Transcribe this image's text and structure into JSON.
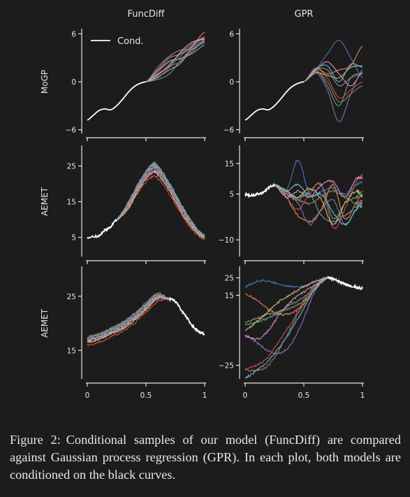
{
  "figure": {
    "columns": [
      "FuncDiff",
      "GPR"
    ],
    "rows": [
      "MoGP",
      "AEMET",
      "AEMET"
    ],
    "legend": "Cond."
  },
  "colors": {
    "background": "#1c1c1c",
    "axis": "#e6e6e6",
    "conditioning": "#ffffff",
    "palette": [
      "#4c72b0",
      "#dd8452",
      "#55a868",
      "#c44e52",
      "#8172b3",
      "#937860",
      "#da8bc3",
      "#8c8c8c",
      "#ccb974",
      "#64b5cd"
    ]
  },
  "chart_data": [
    {
      "type": "line",
      "panel": "MoGP-FuncDiff",
      "x_ticks": [
        0,
        0.5,
        1
      ],
      "x_tick_labels": [],
      "xlim": [
        0,
        1
      ],
      "y_ticks": [
        6,
        0,
        -6
      ],
      "y_tick_labels": [
        "6",
        "0",
        "−6"
      ],
      "ylim": [
        -6.3,
        6.3
      ],
      "ylabel": "MoGP",
      "column_title": "FuncDiff",
      "legend": "Cond.",
      "noise": false,
      "conditioning": {
        "x": [
          0,
          0.05,
          0.1,
          0.15,
          0.2,
          0.25,
          0.3,
          0.35,
          0.4,
          0.45,
          0.5
        ],
        "y": [
          -4.8,
          -4.2,
          -3.6,
          -3.4,
          -3.5,
          -3.0,
          -2.2,
          -1.3,
          -0.6,
          -0.2,
          0.0
        ]
      },
      "samples": {
        "x": [
          0.5,
          0.6,
          0.7,
          0.8,
          0.9,
          1.0
        ],
        "y": [
          [
            0,
            0.5,
            1.8,
            3.3,
            4.4,
            5.2
          ],
          [
            0,
            1.5,
            3.0,
            3.5,
            4.6,
            6.2
          ],
          [
            0,
            0.3,
            1.0,
            2.8,
            4.2,
            5.0
          ],
          [
            0,
            1.2,
            2.5,
            3.0,
            3.8,
            5.4
          ],
          [
            0,
            0.8,
            2.2,
            3.6,
            4.8,
            5.6
          ],
          [
            0,
            1.0,
            1.9,
            2.6,
            4.0,
            4.9
          ],
          [
            0,
            0.6,
            1.5,
            2.4,
            4.5,
            5.5
          ],
          [
            0,
            1.8,
            3.2,
            4.0,
            4.1,
            5.1
          ],
          [
            0,
            0.9,
            2.0,
            3.8,
            5.0,
            5.3
          ],
          [
            0,
            1.4,
            2.6,
            2.9,
            3.6,
            4.6
          ]
        ]
      }
    },
    {
      "type": "line",
      "panel": "MoGP-GPR",
      "x_ticks": [
        0,
        0.5,
        1
      ],
      "x_tick_labels": [],
      "xlim": [
        0,
        1
      ],
      "y_ticks": [
        6,
        0,
        -6
      ],
      "y_tick_labels": [
        "6",
        "0",
        "−6"
      ],
      "ylim": [
        -6.3,
        6.3
      ],
      "ylabel": "",
      "column_title": "GPR",
      "noise": false,
      "conditioning": {
        "x": [
          0,
          0.05,
          0.1,
          0.15,
          0.2,
          0.25,
          0.3,
          0.35,
          0.4,
          0.45,
          0.5
        ],
        "y": [
          -4.8,
          -4.2,
          -3.6,
          -3.4,
          -3.5,
          -3.0,
          -2.2,
          -1.3,
          -0.6,
          -0.2,
          0.0
        ]
      },
      "samples": {
        "x": [
          0.5,
          0.6,
          0.7,
          0.8,
          0.9,
          1.0
        ],
        "y": [
          [
            0,
            1.5,
            3.5,
            5.2,
            3.0,
            0.5
          ],
          [
            0,
            1.7,
            1.0,
            1.5,
            2.0,
            4.5
          ],
          [
            0,
            1.5,
            -0.5,
            -3.0,
            0.5,
            1.0
          ],
          [
            0,
            1.6,
            0.5,
            -2.0,
            -1.0,
            0.0
          ],
          [
            0,
            1.2,
            -1.0,
            -5.0,
            -1.5,
            1.5
          ],
          [
            0,
            1.3,
            0.0,
            -2.5,
            -1.5,
            -0.5
          ],
          [
            0,
            1.4,
            2.5,
            1.0,
            -0.5,
            1.2
          ],
          [
            0,
            1.5,
            1.5,
            -0.5,
            0.5,
            1.0
          ],
          [
            0,
            1.1,
            0.8,
            0.5,
            1.8,
            2.0
          ],
          [
            0,
            1.6,
            2.0,
            0.0,
            2.2,
            1.8
          ]
        ]
      }
    },
    {
      "type": "line",
      "panel": "AEMET-FuncDiff-1",
      "x_ticks": [
        0,
        0.5,
        1
      ],
      "x_tick_labels": [],
      "xlim": [
        0,
        1
      ],
      "y_ticks": [
        25,
        15,
        5
      ],
      "y_tick_labels": [
        "25",
        "15",
        "5"
      ],
      "ylim": [
        0,
        30
      ],
      "ylabel": "AEMET",
      "noise": true,
      "conditioning": {
        "x": [
          0,
          0.1,
          0.15,
          0.2,
          0.25
        ],
        "y": [
          5,
          5.5,
          7,
          8,
          10
        ]
      },
      "samples": {
        "x": [
          0.25,
          0.35,
          0.45,
          0.55,
          0.6,
          0.7,
          0.8,
          0.9,
          1.0
        ],
        "y": [
          [
            10,
            14,
            20,
            24,
            23.5,
            19,
            13,
            8,
            5
          ],
          [
            10,
            13.5,
            19,
            23,
            22.5,
            18,
            12,
            7.5,
            4.8
          ],
          [
            10,
            14.5,
            20.5,
            25,
            24,
            19.5,
            13.5,
            8.5,
            5.2
          ],
          [
            10,
            13,
            18.5,
            22,
            21.5,
            17,
            11.5,
            7,
            4.5
          ],
          [
            10,
            14,
            19.5,
            23.5,
            23,
            18.5,
            12.5,
            8,
            5
          ],
          [
            10,
            15,
            21,
            25.5,
            25,
            20,
            14,
            9,
            5.5
          ],
          [
            10,
            13.8,
            19.8,
            24.2,
            23.8,
            19.2,
            13.2,
            8.2,
            5
          ],
          [
            10,
            14.2,
            20.2,
            24.8,
            24.2,
            19.8,
            13.8,
            8.6,
            5.3
          ],
          [
            10,
            13.2,
            19,
            23.2,
            22.8,
            18.2,
            12.2,
            7.6,
            4.7
          ],
          [
            10,
            14.6,
            20.6,
            25.2,
            24.6,
            20.2,
            14.2,
            8.8,
            5.4
          ]
        ]
      }
    },
    {
      "type": "line",
      "panel": "AEMET-GPR-1",
      "x_ticks": [
        0,
        0.5,
        1
      ],
      "x_tick_labels": [],
      "xlim": [
        0,
        1
      ],
      "y_ticks": [
        15,
        5,
        -10
      ],
      "y_tick_labels": [
        "15",
        "5",
        "−10"
      ],
      "ylim": [
        -15,
        20
      ],
      "ylabel": "",
      "noise": true,
      "conditioning": {
        "x": [
          0,
          0.05,
          0.1,
          0.15,
          0.2,
          0.25
        ],
        "y": [
          5,
          4.5,
          5,
          5.5,
          7,
          8
        ]
      },
      "samples": {
        "x": [
          0.25,
          0.35,
          0.45,
          0.55,
          0.65,
          0.75,
          0.85,
          0.95,
          1.0
        ],
        "y": [
          [
            8,
            6,
            16,
            5,
            6,
            7,
            5,
            8,
            9
          ],
          [
            8,
            4,
            -2,
            -4,
            0,
            8,
            -3,
            2,
            5
          ],
          [
            8,
            6,
            4,
            6,
            8,
            -3,
            2,
            4,
            6
          ],
          [
            8,
            4,
            0,
            5,
            8,
            -6,
            0,
            9,
            11
          ],
          [
            8,
            6,
            2,
            -5,
            0,
            3,
            -5,
            0,
            2
          ],
          [
            8,
            5,
            3,
            2,
            4,
            6,
            4,
            2,
            3
          ],
          [
            8,
            4,
            6,
            4,
            8,
            9,
            4,
            10,
            10
          ],
          [
            8,
            5,
            3,
            5,
            -2,
            -4,
            -2,
            1,
            2
          ],
          [
            8,
            6,
            4,
            7,
            3,
            -5,
            2,
            6,
            4
          ],
          [
            8,
            6,
            8,
            4,
            5,
            -1,
            -5,
            0,
            1
          ]
        ]
      }
    },
    {
      "type": "line",
      "panel": "AEMET-FuncDiff-2",
      "x_ticks": [
        0,
        0.5,
        1
      ],
      "x_tick_labels": [
        "0",
        "0.5",
        "1"
      ],
      "xlim": [
        0,
        1
      ],
      "y_ticks": [
        25,
        15
      ],
      "y_tick_labels": [
        "25",
        "15"
      ],
      "ylim": [
        10,
        30
      ],
      "ylabel": "AEMET",
      "noise": true,
      "conditioning": {
        "x": [
          0.7,
          0.75,
          0.8,
          0.85,
          0.9,
          0.95,
          1.0
        ],
        "y": [
          24.5,
          24,
          22.5,
          21,
          19.5,
          18.5,
          18
        ]
      },
      "samples": {
        "x": [
          0,
          0.1,
          0.2,
          0.3,
          0.4,
          0.5,
          0.6,
          0.7
        ],
        "y": [
          [
            17,
            17.5,
            18.5,
            19.5,
            21,
            23,
            25,
            24.5
          ],
          [
            16.5,
            17,
            18,
            19,
            20.5,
            22.5,
            24.5,
            24.5
          ],
          [
            17.5,
            18,
            19,
            20,
            21.5,
            23.5,
            25,
            24.5
          ],
          [
            16,
            16.5,
            17.5,
            18.5,
            20,
            22,
            24,
            24.5
          ],
          [
            17,
            17.8,
            18.8,
            19.8,
            21.3,
            23.3,
            25.2,
            24.5
          ],
          [
            17.2,
            18,
            19,
            20.2,
            21.8,
            23.8,
            25.5,
            24.5
          ],
          [
            16.8,
            17.3,
            18.3,
            19.3,
            20.8,
            22.8,
            24.8,
            24.5
          ],
          [
            17.4,
            17.9,
            18.9,
            20,
            21.6,
            23.6,
            25.3,
            24.5
          ],
          [
            16.6,
            17.1,
            18.1,
            19.1,
            20.6,
            22.6,
            24.6,
            24.5
          ],
          [
            17,
            17.6,
            18.6,
            19.6,
            21.1,
            23.1,
            25,
            24.5
          ]
        ]
      }
    },
    {
      "type": "line",
      "panel": "AEMET-GPR-2",
      "x_ticks": [
        0,
        0.5,
        1
      ],
      "x_tick_labels": [
        "0",
        "0.5",
        "1"
      ],
      "xlim": [
        0,
        1
      ],
      "y_ticks": [
        25,
        15,
        -25
      ],
      "y_tick_labels": [
        "25",
        "15",
        "−25"
      ],
      "ylim": [
        -32,
        30
      ],
      "ylabel": "",
      "noise": true,
      "conditioning": {
        "x": [
          0.7,
          0.75,
          0.8,
          0.85,
          0.9,
          0.95,
          1.0
        ],
        "y": [
          25,
          24.5,
          23,
          21.5,
          20.5,
          19.5,
          19
        ]
      },
      "samples": {
        "x": [
          0,
          0.1,
          0.2,
          0.3,
          0.4,
          0.5,
          0.6,
          0.7
        ],
        "y": [
          [
            20,
            23,
            23,
            21,
            20,
            20,
            23,
            25
          ],
          [
            16,
            12,
            7,
            4,
            5,
            10,
            19,
            25
          ],
          [
            -2,
            0,
            2,
            6,
            10,
            14,
            20,
            25
          ],
          [
            -27,
            -25,
            -20,
            -10,
            0,
            12,
            21,
            25
          ],
          [
            -8,
            -12,
            -17,
            -18,
            -12,
            2,
            18,
            25
          ],
          [
            -28,
            -28,
            -25,
            -15,
            -2,
            10,
            20,
            25
          ],
          [
            -8,
            -10,
            -5,
            5,
            12,
            17,
            21,
            25
          ],
          [
            0,
            2,
            4,
            6,
            8,
            12,
            19,
            25
          ],
          [
            -5,
            0,
            6,
            12,
            16,
            20,
            23,
            25
          ],
          [
            -32,
            -28,
            -22,
            -14,
            -4,
            8,
            19,
            25
          ]
        ]
      }
    }
  ],
  "caption": {
    "label": "Figure 2:",
    "text": "Conditional samples of our model (FuncDiff) are compared against Gaussian process regression (GPR). In each plot, both models are conditioned on the black curves."
  }
}
